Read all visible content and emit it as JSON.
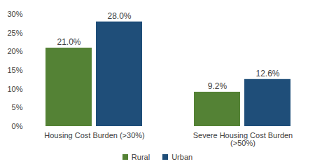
{
  "chart_data": {
    "type": "bar",
    "categories": [
      "Housing Cost Burden (>30%)",
      "Severe Housing Cost Burden (>50%)"
    ],
    "series": [
      {
        "name": "Rural",
        "color": "#548235",
        "values": [
          21.0,
          9.2
        ],
        "value_labels": [
          "21.0%",
          "9.2%"
        ]
      },
      {
        "name": "Urban",
        "color": "#1f4e79",
        "values": [
          28.0,
          12.6
        ],
        "value_labels": [
          "28.0%",
          "12.6%"
        ]
      }
    ],
    "ylim": [
      0,
      30
    ],
    "yticks": [
      {
        "value": 0,
        "label": "0%"
      },
      {
        "value": 5,
        "label": "5%"
      },
      {
        "value": 10,
        "label": "10%"
      },
      {
        "value": 15,
        "label": "15%"
      },
      {
        "value": 20,
        "label": "20%"
      },
      {
        "value": 25,
        "label": "25%"
      },
      {
        "value": 30,
        "label": "30%"
      }
    ],
    "grid": false,
    "data_labels": true,
    "legend": "bottom"
  }
}
